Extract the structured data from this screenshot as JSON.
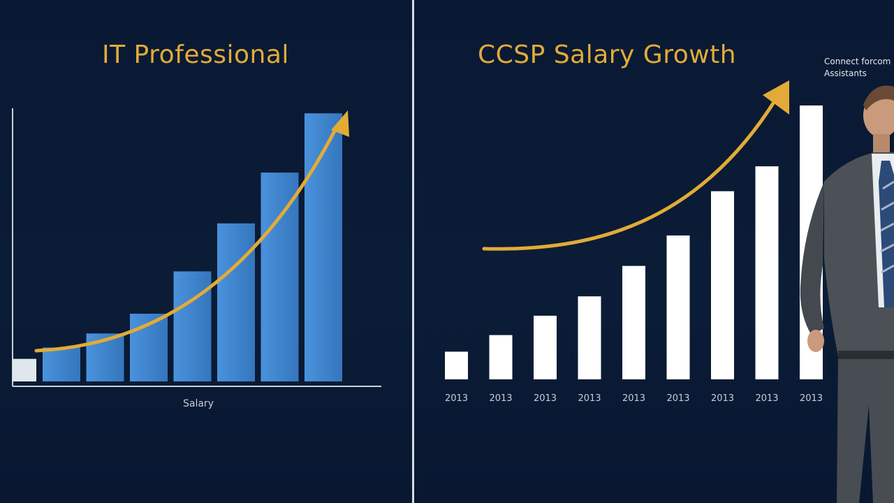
{
  "colors": {
    "background": "#0b1a33",
    "accent": "#e2ab38",
    "left_bar": "#3d85cf",
    "right_bar": "#ffffff",
    "divider": "#d6dbe3"
  },
  "left_panel": {
    "title": "IT Professional",
    "xlabel": "Salary"
  },
  "right_panel": {
    "title": "CCSP Salary Growth",
    "corner_text_line1": "Connect forcom",
    "corner_text_line2": "Assistants"
  },
  "chart_data": [
    {
      "type": "bar",
      "title": "IT Professional",
      "xlabel": "Salary",
      "ylabel": "",
      "values": [
        8,
        12,
        17,
        24,
        39,
        56,
        74,
        95
      ],
      "ylim": [
        0,
        100
      ],
      "trend_arrow": true,
      "grid": false,
      "axes": "left-bottom"
    },
    {
      "type": "bar",
      "title": "CCSP Salary Growth",
      "categories": [
        "2013",
        "2013",
        "2013",
        "2013",
        "2013",
        "2013",
        "2013",
        "2013",
        "2013"
      ],
      "values": [
        10,
        16,
        23,
        30,
        41,
        52,
        68,
        77,
        99
      ],
      "ylim": [
        0,
        100
      ],
      "trend_arrow": true,
      "grid": false
    }
  ],
  "icons": {
    "left_arrow": "trend-arrow-icon",
    "right_arrow": "trend-arrow-icon",
    "person": "businessman-figure"
  }
}
